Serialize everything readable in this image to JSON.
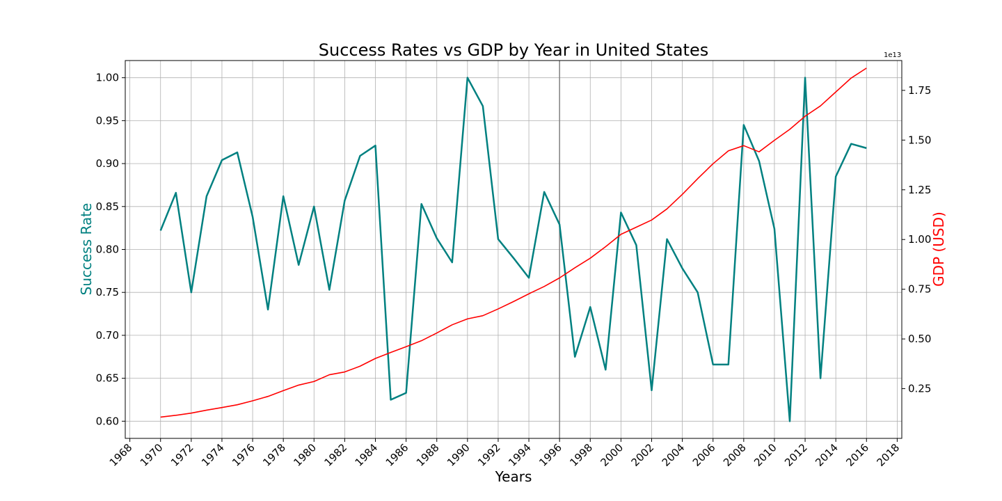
{
  "chart_data": {
    "type": "line",
    "title": "Success Rates vs GDP by Year in United States",
    "xlabel": "Years",
    "ylabel_left": "Success Rate",
    "ylabel_right": "GDP (USD)",
    "right_axis_offset_label": "1e13",
    "xlim": [
      1967.7,
      2018.3
    ],
    "ylim_left": [
      0.58,
      1.02
    ],
    "ylim_right": [
      0.0,
      1.9
    ],
    "x_ticks": [
      "1968",
      "1970",
      "1972",
      "1974",
      "1976",
      "1978",
      "1980",
      "1982",
      "1984",
      "1986",
      "1988",
      "1990",
      "1992",
      "1994",
      "1996",
      "1998",
      "2000",
      "2002",
      "2004",
      "2006",
      "2008",
      "2010",
      "2012",
      "2014",
      "2016",
      "2018"
    ],
    "y_left_ticks": [
      "0.60",
      "0.65",
      "0.70",
      "0.75",
      "0.80",
      "0.85",
      "0.90",
      "0.95",
      "1.00"
    ],
    "y_right_ticks": [
      "0.25",
      "0.50",
      "0.75",
      "1.00",
      "1.25",
      "1.50",
      "1.75"
    ],
    "grid": true,
    "vertical_marker_year": 1996,
    "colors": {
      "success": "#008080",
      "gdp": "#ff0000",
      "ylabel_left": "#008080",
      "ylabel_right": "#ff0000",
      "grid": "#b0b0b0",
      "marker": "#808080"
    },
    "x": [
      1970,
      1971,
      1972,
      1973,
      1974,
      1975,
      1976,
      1977,
      1978,
      1979,
      1980,
      1981,
      1982,
      1983,
      1984,
      1985,
      1986,
      1987,
      1988,
      1989,
      1990,
      1991,
      1992,
      1993,
      1994,
      1995,
      1996,
      1997,
      1998,
      1999,
      2000,
      2001,
      2002,
      2003,
      2004,
      2005,
      2006,
      2007,
      2008,
      2009,
      2010,
      2011,
      2012,
      2013,
      2014,
      2015,
      2016
    ],
    "series": [
      {
        "axis": "left",
        "values": [
          0.822,
          0.866,
          0.75,
          0.862,
          0.904,
          0.913,
          0.838,
          0.73,
          0.862,
          0.782,
          0.85,
          0.753,
          0.857,
          0.909,
          0.921,
          0.625,
          0.633,
          0.853,
          0.813,
          0.785,
          1.0,
          0.967,
          0.812,
          0.79,
          0.767,
          0.867,
          0.829,
          0.675,
          0.733,
          0.66,
          0.843,
          0.805,
          0.636,
          0.812,
          0.778,
          0.75,
          0.666,
          0.666,
          0.945,
          0.903,
          0.824,
          0.6,
          1.0,
          0.65,
          0.885,
          0.923,
          0.918
        ]
      },
      {
        "axis": "right",
        "values": [
          0.107,
          0.116,
          0.127,
          0.142,
          0.155,
          0.169,
          0.189,
          0.211,
          0.24,
          0.268,
          0.286,
          0.32,
          0.334,
          0.363,
          0.402,
          0.432,
          0.461,
          0.491,
          0.53,
          0.571,
          0.601,
          0.617,
          0.651,
          0.688,
          0.727,
          0.764,
          0.807,
          0.858,
          0.906,
          0.964,
          1.026,
          1.062,
          1.098,
          1.154,
          1.227,
          1.306,
          1.381,
          1.446,
          1.472,
          1.441,
          1.499,
          1.554,
          1.62,
          1.672,
          1.742,
          1.812,
          1.862
        ]
      }
    ]
  }
}
